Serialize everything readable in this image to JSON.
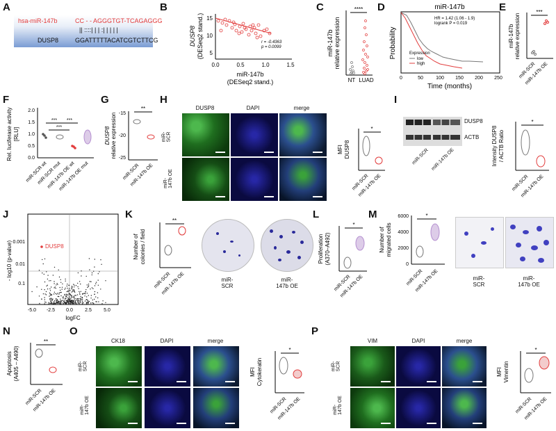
{
  "panels": [
    "A",
    "B",
    "C",
    "D",
    "E",
    "F",
    "G",
    "H",
    "I",
    "J",
    "K",
    "L",
    "M",
    "N",
    "O",
    "P"
  ],
  "A": {
    "mirna_label": "hsa-miR-147b",
    "mirna_seq": "CC - - AGGGTGT-TCAGAGGG",
    "pairing": "|| ::::| | | :| | | | |",
    "target_label": "DUSP8",
    "target_seq": "GGATTTTTACATCGTCTTCG"
  },
  "B": {
    "ylabel_top": "DUSP8",
    "ylabel_bottom": "(DESeq2 stand.)",
    "xlabel_top": "miR-147b",
    "xlabel_bottom": "(DESeq2 stand.)",
    "r_text": "r = -0.4363",
    "p_text": "p = 0.0099",
    "xticks": [
      "0.0",
      "0.5",
      "1.0",
      "1.5"
    ],
    "yticks": [
      "5",
      "10",
      "15"
    ]
  },
  "C": {
    "ylabel_top": "miR-147b",
    "ylabel_bottom": "relative expression",
    "sig": "****",
    "xticks": [
      "NT",
      "LUAD"
    ]
  },
  "D": {
    "title": "miR-147b",
    "ylabel": "Probability",
    "xlabel": "Time (months)",
    "hr": "HR = 1.42 (1.06 - 1.9)",
    "logrank": "logrank P = 0.019",
    "legend_title": "Expression",
    "legend_low": "low",
    "legend_high": "high",
    "xticks": [
      "0",
      "50",
      "100",
      "150",
      "200",
      "250"
    ],
    "low_color": "#777777",
    "high_color": "#e23c3c"
  },
  "E": {
    "ylabel_top": "miR-147b",
    "ylabel_bottom": "relative expression",
    "sig": "***",
    "xticks": [
      "miR-SCR",
      "miR-147b OE"
    ]
  },
  "F": {
    "ylabel_top": "Rel. luciferase activity",
    "ylabel_bottom": "[RLU]",
    "sig": [
      "***",
      "***",
      "***"
    ],
    "yticks": [
      "0.0",
      "0.5",
      "1.0",
      "1.5",
      "2.0"
    ],
    "xticks": [
      "miR-SCR wt",
      "miR-SCR mut",
      "miR-147b OE wt",
      "miR-147b OE mut"
    ]
  },
  "G": {
    "ylabel_top": "DUSP8",
    "ylabel_bottom": "relative expression",
    "sig": "**",
    "yticks": [
      "-15",
      "-20",
      "-25"
    ],
    "xticks": [
      "miR-SCR",
      "miR-147b OE"
    ]
  },
  "H": {
    "col_titles": [
      "DUSP8",
      "DAPI",
      "merge"
    ],
    "row_labels": [
      "miR-\nSCR",
      "miR-\n147b OE"
    ],
    "ylabel_top": "MFI",
    "ylabel_bottom": "DUSP8",
    "sig": "*",
    "xticks": [
      "miR-SCR",
      "miR-147b OE"
    ]
  },
  "I": {
    "blot_labels": [
      "DUSP8",
      "ACTB"
    ],
    "lane_groups": [
      "miR-SCR",
      "miR-147b OE"
    ],
    "ylabel_top": "Intensity DUSP8",
    "ylabel_bottom": "/ ACTB Ratio",
    "sig": "*",
    "xticks": [
      "miR-SCR",
      "miR-147b OE"
    ]
  },
  "J": {
    "ylabel": "- log10 (p-value)",
    "xlabel": "logFC",
    "highlight": "DUSP8",
    "yticks": [
      "0.001",
      "0.01",
      "0.1",
      "1"
    ],
    "xticks": [
      "-5.0",
      "-2.5",
      "0.0",
      "2.5",
      "5.0"
    ]
  },
  "K": {
    "ylabel_top": "Number of",
    "ylabel_bottom": "colonies / field",
    "sig": "**",
    "xticks": [
      "miR-SCR",
      "miR-147b OE"
    ],
    "img_labels": [
      "miR-\nSCR",
      "miR-\n147b OE"
    ]
  },
  "L": {
    "ylabel_top": "Proliferation",
    "ylabel_bottom": "(A370–A492)",
    "sig": "*",
    "xticks": [
      "miR-SCR",
      "miR-147b OE"
    ]
  },
  "M": {
    "ylabel_top": "Number of",
    "ylabel_bottom": "migrated cells",
    "sig": "*",
    "yticks": [
      "0",
      "2000",
      "4000",
      "6000"
    ],
    "xticks": [
      "miR-SCR",
      "miR-147b OE"
    ],
    "img_labels": [
      "miR-\nSCR",
      "miR-\n147b OE"
    ]
  },
  "N": {
    "ylabel_top": "Apoptosis",
    "ylabel_bottom": "(A405 – A490)",
    "sig": "**",
    "xticks": [
      "miR-SCR",
      "miR-147b OE"
    ]
  },
  "O": {
    "col_titles": [
      "CK18",
      "DAPI",
      "merge"
    ],
    "row_labels": [
      "miR-\nSCR",
      "miR-\n147b OE"
    ],
    "ylabel_top": "MFI",
    "ylabel_bottom": "Cytokeratin",
    "sig": "*",
    "xticks": [
      "miR-SCR",
      "miR-147b OE"
    ]
  },
  "P": {
    "col_titles": [
      "VIM",
      "DAPI",
      "merge"
    ],
    "row_labels": [
      "miR-\nSCR",
      "miR-\n147b OE"
    ],
    "ylabel_top": "MFI",
    "ylabel_bottom": "Vimentin",
    "sig": "*",
    "xticks": [
      "miR-SCR",
      "miR-147b OE"
    ]
  },
  "colors": {
    "red": "#e23c3c",
    "green": "#3cae3c",
    "blue": "#2a2ad8",
    "violet": "#c0a0d8"
  }
}
